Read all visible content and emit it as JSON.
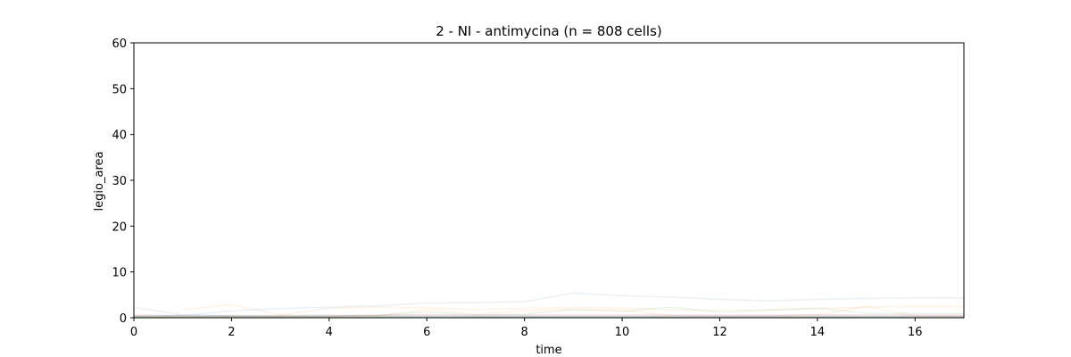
{
  "chart_data": {
    "type": "line",
    "title": "2 - NI - antimycina (n = 808 cells)",
    "xlabel": "time",
    "ylabel": "legio_area",
    "xlim": [
      0,
      17
    ],
    "ylim": [
      0,
      60
    ],
    "xticks": [
      0,
      2,
      4,
      6,
      8,
      10,
      12,
      14,
      16
    ],
    "yticks": [
      0,
      10,
      20,
      30,
      40,
      50,
      60
    ],
    "grid": false,
    "legend": "none",
    "n_cells": 808,
    "line_opacity": 0.1,
    "series": [
      {
        "color": "#1f77b4",
        "x": [
          0,
          1,
          2,
          3,
          4,
          5,
          6,
          7,
          8,
          9,
          10,
          11,
          12,
          13,
          14,
          15,
          16,
          17
        ],
        "values": [
          0.3,
          0.5,
          1.5,
          2.0,
          2.3,
          2.6,
          3.2,
          3.3,
          3.5,
          5.4,
          4.8,
          4.5,
          4.0,
          3.7,
          4.0,
          4.2,
          4.3,
          4.3
        ]
      },
      {
        "color": "#1f77b4",
        "x": [
          0,
          1,
          2,
          3,
          4,
          5,
          6,
          7,
          8,
          9,
          10,
          11,
          12,
          13,
          14,
          15,
          16,
          17
        ],
        "values": [
          2.3,
          0.6,
          0.4,
          0.3,
          0.3,
          0.4,
          0.4,
          0.3,
          0.3,
          0.3,
          0.3,
          0.3,
          0.3,
          0.3,
          0.3,
          0.3,
          0.3,
          0.3
        ]
      },
      {
        "color": "#ff7f0e",
        "x": [
          1,
          2,
          3,
          4,
          5,
          6,
          7,
          8,
          9,
          10,
          11,
          12,
          13,
          14,
          15,
          16,
          17
        ],
        "values": [
          1.8,
          2.9,
          0.6,
          2.0,
          2.3,
          2.2,
          1.8,
          2.0,
          2.3,
          2.1,
          1.7,
          1.6,
          1.8,
          2.0,
          2.3,
          2.5,
          2.4
        ]
      },
      {
        "color": "#ff7f0e",
        "x": [
          0,
          1,
          2,
          3,
          4,
          5,
          6,
          7,
          8,
          9,
          10,
          11,
          12,
          13,
          14,
          15,
          16,
          17
        ],
        "values": [
          0.3,
          0.2,
          0.3,
          0.3,
          0.4,
          0.4,
          1.8,
          0.8,
          1.5,
          1.9,
          1.6,
          0.5,
          0.3,
          0.4,
          0.6,
          2.5,
          0.4,
          0.3
        ]
      },
      {
        "color": "#2ca02c",
        "x": [
          0,
          1,
          2,
          3,
          4,
          5,
          6,
          7,
          8,
          9,
          10,
          11,
          12,
          13,
          14,
          15,
          16,
          17
        ],
        "values": [
          0.2,
          0.3,
          0.3,
          0.4,
          0.4,
          0.5,
          1.3,
          0.6,
          0.8,
          1.7,
          1.4,
          2.3,
          1.2,
          1.6,
          2.1,
          1.0,
          0.9,
          0.9
        ]
      },
      {
        "color": "#2ca02c",
        "x": [
          0,
          1,
          2,
          3,
          4,
          5,
          6,
          7,
          8,
          9,
          10,
          11,
          12,
          13,
          14,
          15,
          16,
          17
        ],
        "values": [
          0.4,
          0.4,
          0.3,
          0.3,
          0.3,
          0.3,
          0.3,
          0.3,
          0.3,
          0.3,
          0.3,
          0.3,
          0.3,
          0.3,
          0.3,
          0.3,
          0.3,
          0.3
        ]
      },
      {
        "color": "#d62728",
        "x": [
          0,
          1,
          2,
          3,
          4,
          5,
          6,
          7,
          8,
          9,
          10,
          11,
          12,
          13,
          14,
          15,
          16,
          17
        ],
        "values": [
          0.5,
          0.4,
          0.4,
          0.4,
          0.4,
          0.5,
          0.6,
          0.5,
          0.5,
          0.5,
          0.5,
          0.5,
          0.5,
          0.5,
          0.6,
          0.5,
          0.5,
          0.5
        ]
      },
      {
        "color": "#9467bd",
        "x": [
          0,
          1,
          2,
          3,
          4,
          5,
          6,
          7,
          8,
          9,
          10,
          11,
          12,
          13,
          14,
          15,
          16,
          17
        ],
        "values": [
          0.6,
          0.5,
          0.5,
          0.5,
          0.6,
          0.6,
          0.7,
          0.6,
          0.6,
          0.6,
          0.6,
          0.6,
          0.6,
          0.6,
          0.6,
          0.6,
          0.6,
          0.6
        ]
      },
      {
        "color": "#8c564b",
        "x": [
          0,
          1,
          2,
          3,
          4,
          5,
          6,
          7,
          8,
          9,
          10,
          11,
          12,
          13,
          14,
          15,
          16,
          17
        ],
        "values": [
          0.2,
          0.2,
          0.2,
          0.2,
          0.2,
          0.2,
          0.2,
          0.2,
          0.2,
          0.2,
          0.2,
          0.2,
          0.2,
          0.2,
          0.2,
          0.2,
          0.2,
          0.2
        ]
      },
      {
        "color": "#e377c2",
        "x": [
          0,
          1,
          2,
          3,
          4,
          5,
          6,
          7,
          8,
          9,
          10,
          11,
          12,
          13,
          14,
          15,
          16,
          17
        ],
        "values": [
          0.3,
          0.3,
          0.3,
          0.3,
          0.3,
          0.3,
          0.3,
          0.3,
          0.3,
          0.3,
          0.3,
          0.3,
          0.3,
          0.3,
          0.3,
          0.3,
          0.3,
          0.3
        ]
      },
      {
        "color": "#bcbd22",
        "x": [
          0,
          1,
          2,
          3,
          4,
          5,
          6,
          7,
          8,
          9,
          10,
          11,
          12,
          13,
          14,
          15,
          16,
          17
        ],
        "values": [
          0.1,
          0.1,
          0.1,
          0.1,
          0.1,
          0.1,
          0.1,
          0.1,
          0.1,
          0.1,
          0.1,
          0.1,
          0.1,
          0.1,
          0.1,
          0.1,
          0.1,
          0.1
        ]
      },
      {
        "color": "#17becf",
        "x": [
          0,
          1,
          2,
          3,
          4,
          5,
          6,
          7,
          8,
          9,
          10,
          11,
          12,
          13,
          14,
          15,
          16,
          17
        ],
        "values": [
          0.2,
          0.2,
          0.3,
          0.2,
          0.2,
          0.2,
          0.2,
          0.2,
          0.2,
          0.2,
          0.2,
          0.2,
          0.2,
          0.2,
          0.2,
          0.2,
          0.2,
          0.2
        ]
      }
    ]
  }
}
